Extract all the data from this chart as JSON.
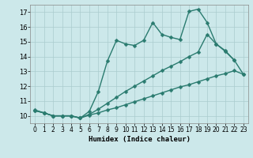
{
  "line1_x": [
    0,
    1,
    2,
    3,
    4,
    5,
    6,
    7,
    8,
    9,
    10,
    11,
    12,
    13,
    14,
    15,
    16,
    17,
    18,
    19,
    20,
    21,
    22
  ],
  "line1_y": [
    10.4,
    10.2,
    10.0,
    10.0,
    10.0,
    9.85,
    10.3,
    11.65,
    13.7,
    15.1,
    14.85,
    14.75,
    15.1,
    16.3,
    15.5,
    15.3,
    15.15,
    17.05,
    17.2,
    16.3,
    14.85,
    14.4,
    13.75
  ],
  "line2_x": [
    0,
    1,
    2,
    3,
    4,
    5,
    6,
    7,
    8,
    9,
    10,
    11,
    12,
    13,
    14,
    15,
    16,
    17,
    18,
    19,
    20,
    21,
    22,
    23
  ],
  "line2_y": [
    10.35,
    10.2,
    10.0,
    10.0,
    10.0,
    9.85,
    10.05,
    10.2,
    10.4,
    10.55,
    10.75,
    10.95,
    11.15,
    11.35,
    11.55,
    11.75,
    11.95,
    12.1,
    12.3,
    12.5,
    12.7,
    12.85,
    13.05,
    12.8
  ],
  "line3_x": [
    0,
    1,
    2,
    3,
    4,
    5,
    6,
    7,
    8,
    9,
    10,
    11,
    12,
    13,
    14,
    15,
    16,
    17,
    18,
    19,
    20,
    21,
    22,
    23
  ],
  "line3_y": [
    10.35,
    10.2,
    10.0,
    10.0,
    10.0,
    9.85,
    10.1,
    10.45,
    10.85,
    11.25,
    11.65,
    12.0,
    12.35,
    12.7,
    13.05,
    13.35,
    13.65,
    14.0,
    14.3,
    15.5,
    14.85,
    14.35,
    13.75,
    12.8
  ],
  "color": "#2a7b6f",
  "bg_color": "#cce8ea",
  "grid_color": "#aaccce",
  "xlabel": "Humidex (Indice chaleur)",
  "xlim_min": -0.5,
  "xlim_max": 23.5,
  "ylim_min": 9.5,
  "ylim_max": 17.5,
  "yticks": [
    10,
    11,
    12,
    13,
    14,
    15,
    16,
    17
  ],
  "xticks": [
    0,
    1,
    2,
    3,
    4,
    5,
    6,
    7,
    8,
    9,
    10,
    11,
    12,
    13,
    14,
    15,
    16,
    17,
    18,
    19,
    20,
    21,
    22,
    23
  ],
  "markersize": 2.5,
  "linewidth": 1.0,
  "tick_fontsize": 5.5,
  "xlabel_fontsize": 6.5
}
